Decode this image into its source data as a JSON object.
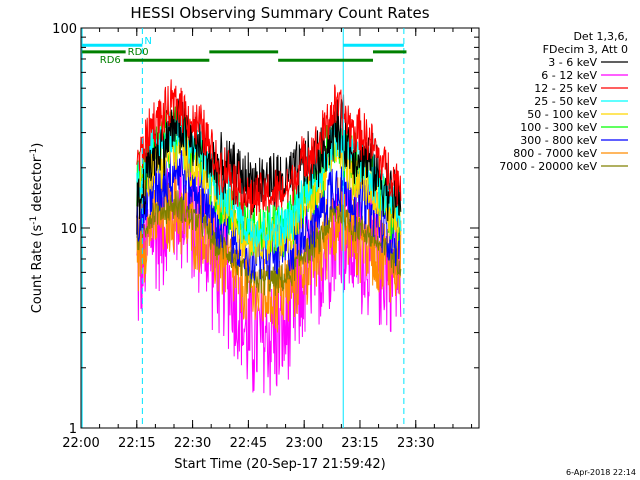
{
  "chart_data": {
    "type": "line",
    "title": "HESSI Observing Summary Count Rates",
    "xlabel": "Start Time (20-Sep-17 21:59:42)",
    "ylabel_main": "Count Rate (s",
    "ylabel_sup1": "-1",
    "ylabel_mid": " detector",
    "ylabel_sup2": "-1",
    "ylabel_end": ")",
    "yscale": "log",
    "ylim": [
      1,
      100
    ],
    "xlim_minutes": [
      0,
      107
    ],
    "xticks": [
      {
        "label": "22:00",
        "min": 0
      },
      {
        "label": "22:15",
        "min": 15
      },
      {
        "label": "22:30",
        "min": 30
      },
      {
        "label": "22:45",
        "min": 45
      },
      {
        "label": "23:00",
        "min": 60
      },
      {
        "label": "23:15",
        "min": 75
      },
      {
        "label": "23:30",
        "min": 90
      }
    ],
    "yticks": [
      {
        "label": "1",
        "value": 1
      },
      {
        "label": "10",
        "value": 10
      },
      {
        "label": "100",
        "value": 100
      }
    ],
    "data_window_minutes": [
      15,
      86
    ],
    "legend_header": [
      "Det 1,3,6,",
      "FDecim 3, Att 0"
    ],
    "series": [
      {
        "name": "3 - 6 keV",
        "color": "#000000",
        "knots": [
          [
            15,
            13
          ],
          [
            20,
            24
          ],
          [
            26,
            33
          ],
          [
            31,
            26
          ],
          [
            38,
            20
          ],
          [
            46,
            17
          ],
          [
            54,
            17
          ],
          [
            62,
            21
          ],
          [
            69,
            31
          ],
          [
            74,
            24
          ],
          [
            86,
            14
          ]
        ],
        "noise": 0.1
      },
      {
        "name": "6 - 12 keV",
        "color": "#ff00ff",
        "knots": [
          [
            15,
            6
          ],
          [
            20,
            10
          ],
          [
            26,
            13
          ],
          [
            31,
            10
          ],
          [
            38,
            6
          ],
          [
            46,
            2.8
          ],
          [
            54,
            3.0
          ],
          [
            62,
            6
          ],
          [
            69,
            10
          ],
          [
            74,
            8
          ],
          [
            86,
            6
          ]
        ],
        "noise": 0.22
      },
      {
        "name": "12 - 25 keV",
        "color": "#ff0000",
        "knots": [
          [
            15,
            22
          ],
          [
            20,
            34
          ],
          [
            26,
            42
          ],
          [
            31,
            33
          ],
          [
            38,
            20
          ],
          [
            46,
            14
          ],
          [
            54,
            15
          ],
          [
            62,
            24
          ],
          [
            69,
            40
          ],
          [
            74,
            30
          ],
          [
            86,
            17
          ]
        ],
        "noise": 0.08
      },
      {
        "name": "25 - 50 keV",
        "color": "#00ffff",
        "knots": [
          [
            15,
            17
          ],
          [
            20,
            26
          ],
          [
            26,
            32
          ],
          [
            31,
            25
          ],
          [
            38,
            15
          ],
          [
            46,
            10
          ],
          [
            54,
            10
          ],
          [
            62,
            17
          ],
          [
            69,
            28
          ],
          [
            74,
            22
          ],
          [
            86,
            12
          ]
        ],
        "noise": 0.08
      },
      {
        "name": "50 - 100 keV",
        "color": "#ffd700",
        "knots": [
          [
            15,
            15
          ],
          [
            20,
            21
          ],
          [
            26,
            25
          ],
          [
            31,
            20
          ],
          [
            38,
            13
          ],
          [
            46,
            9
          ],
          [
            54,
            9
          ],
          [
            62,
            14
          ],
          [
            69,
            24
          ],
          [
            74,
            18
          ],
          [
            86,
            11
          ]
        ],
        "noise": 0.08
      },
      {
        "name": "100 - 300 keV",
        "color": "#00ff00",
        "knots": [
          [
            15,
            17
          ],
          [
            20,
            25
          ],
          [
            26,
            30
          ],
          [
            31,
            24
          ],
          [
            38,
            14
          ],
          [
            46,
            9.5
          ],
          [
            54,
            10
          ],
          [
            62,
            16
          ],
          [
            69,
            27
          ],
          [
            74,
            21
          ],
          [
            86,
            12
          ]
        ],
        "noise": 0.1
      },
      {
        "name": "300 - 800 keV",
        "color": "#0000ff",
        "knots": [
          [
            15,
            11
          ],
          [
            20,
            16
          ],
          [
            26,
            20
          ],
          [
            31,
            16
          ],
          [
            38,
            10
          ],
          [
            46,
            7.5
          ],
          [
            54,
            7.5
          ],
          [
            62,
            11
          ],
          [
            69,
            17
          ],
          [
            74,
            14
          ],
          [
            86,
            9
          ]
        ],
        "noise": 0.1
      },
      {
        "name": "800 - 7000 keV",
        "color": "#ff8c00",
        "knots": [
          [
            15,
            8
          ],
          [
            20,
            11
          ],
          [
            26,
            12
          ],
          [
            31,
            10
          ],
          [
            38,
            7
          ],
          [
            46,
            4.8
          ],
          [
            54,
            4.8
          ],
          [
            62,
            7
          ],
          [
            69,
            11
          ],
          [
            74,
            9
          ],
          [
            86,
            6.5
          ]
        ],
        "noise": 0.14
      },
      {
        "name": "7000 - 20000 keV",
        "color": "#808000",
        "knots": [
          [
            15,
            9
          ],
          [
            20,
            12
          ],
          [
            26,
            13
          ],
          [
            31,
            11
          ],
          [
            38,
            8
          ],
          [
            46,
            5.5
          ],
          [
            54,
            5.5
          ],
          [
            62,
            8
          ],
          [
            69,
            12
          ],
          [
            74,
            10
          ],
          [
            86,
            7
          ]
        ],
        "noise": 0.05
      }
    ],
    "vertical_lines": [
      {
        "min": 0.3,
        "style": "solid",
        "color": "#00e5ff"
      },
      {
        "min": 16.5,
        "style": "dashed",
        "color": "#00e5ff"
      },
      {
        "min": 70.5,
        "style": "solid",
        "color": "#00e5ff"
      },
      {
        "min": 86.8,
        "style": "dashed",
        "color": "#00e5ff"
      }
    ],
    "status_bars": [
      {
        "label": "N",
        "color": "#00e5ff",
        "y": 82,
        "segments": [
          [
            0.3,
            16.5
          ],
          [
            70.5,
            86.8
          ]
        ]
      },
      {
        "label": "RD0",
        "color": "#008000",
        "y": 76,
        "segments": [
          [
            0.3,
            12
          ],
          [
            34.5,
            53
          ],
          [
            78.5,
            87.5
          ]
        ]
      },
      {
        "label": "RD6",
        "color": "#008000",
        "y": 69,
        "segments": [
          [
            11.5,
            34.5
          ],
          [
            53,
            78.5
          ]
        ]
      }
    ]
  },
  "footer": {
    "timestamp": "6-Apr-2018 22:14"
  }
}
